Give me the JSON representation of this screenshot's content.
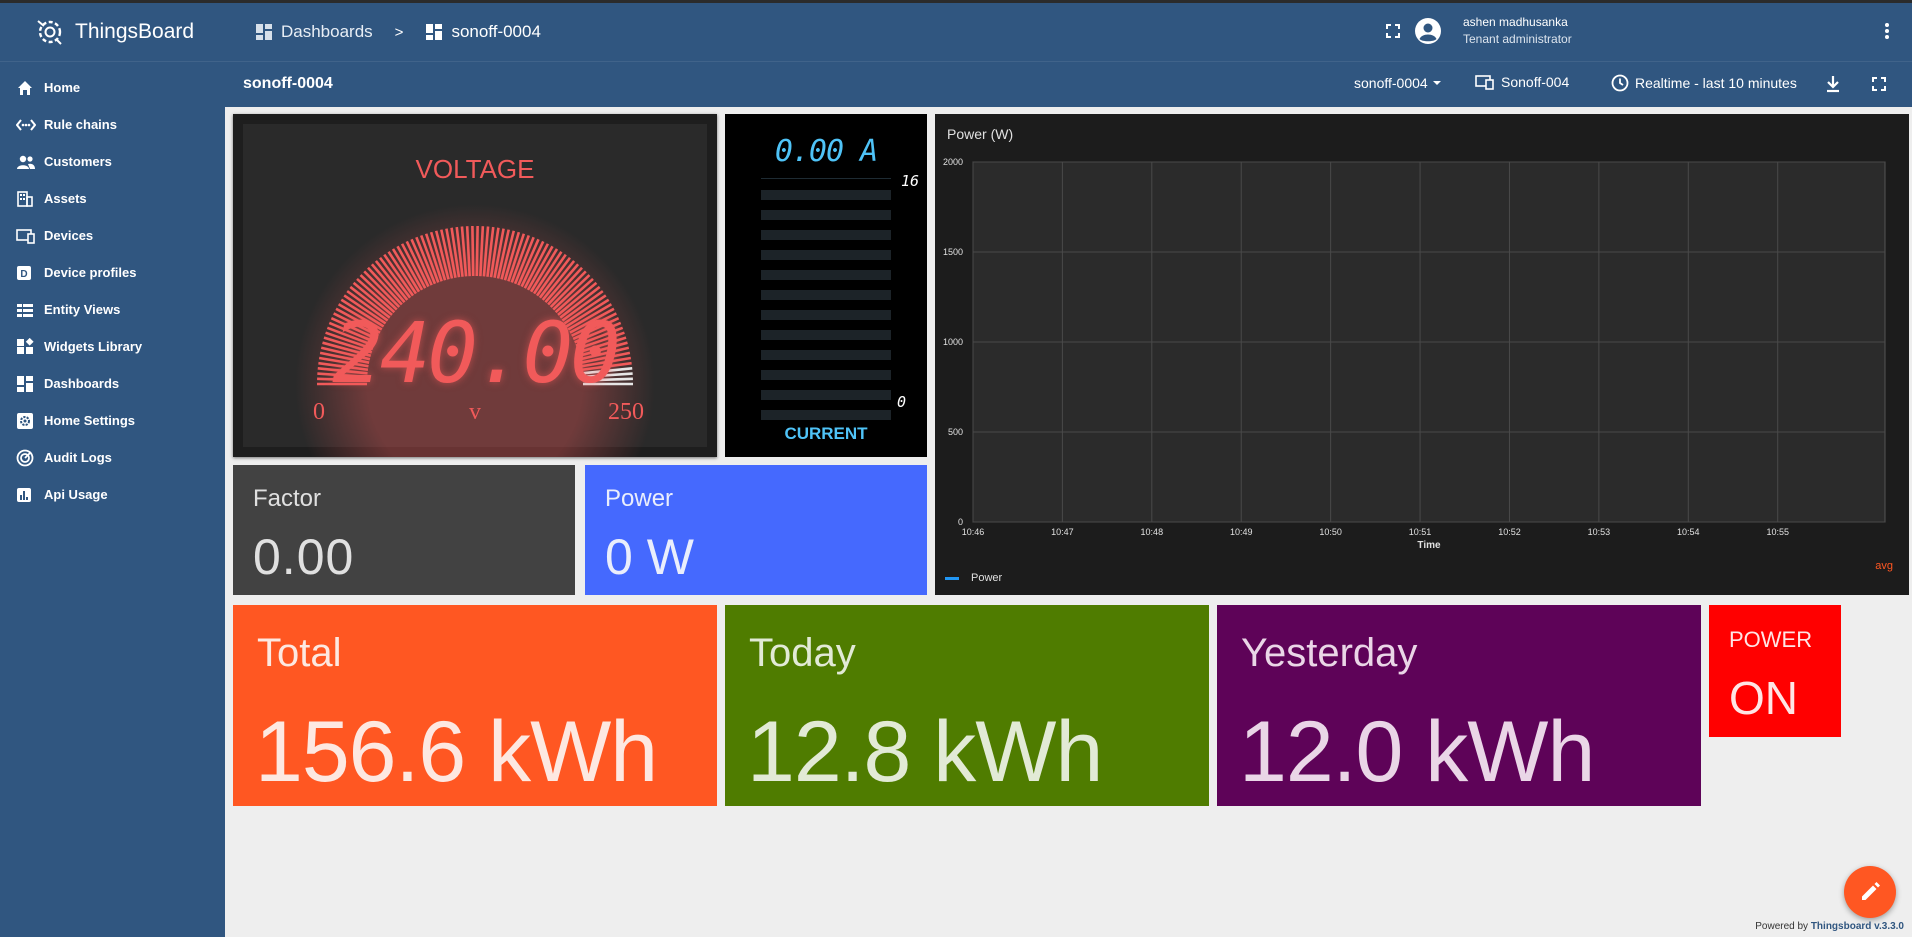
{
  "app": {
    "name": "ThingsBoard"
  },
  "sidebar": {
    "items": [
      {
        "label": "Home",
        "icon": "home-icon"
      },
      {
        "label": "Rule chains",
        "icon": "rule-chain-icon"
      },
      {
        "label": "Customers",
        "icon": "customers-icon"
      },
      {
        "label": "Assets",
        "icon": "assets-icon"
      },
      {
        "label": "Devices",
        "icon": "devices-icon"
      },
      {
        "label": "Device profiles",
        "icon": "device-profiles-icon"
      },
      {
        "label": "Entity Views",
        "icon": "entity-views-icon"
      },
      {
        "label": "Widgets Library",
        "icon": "widgets-library-icon"
      },
      {
        "label": "Dashboards",
        "icon": "dashboards-icon"
      },
      {
        "label": "Home Settings",
        "icon": "settings-icon"
      },
      {
        "label": "Audit Logs",
        "icon": "audit-logs-icon"
      },
      {
        "label": "Api Usage",
        "icon": "api-usage-icon"
      }
    ]
  },
  "header": {
    "breadcrumb": {
      "root": "Dashboards",
      "separator": ">",
      "current": "sonoff-0004"
    },
    "user": {
      "name": "ashen madhusanka",
      "role": "Tenant administrator"
    }
  },
  "dashbar": {
    "title": "sonoff-0004",
    "state_select": "sonoff-0004",
    "entity": "Sonoff-004",
    "timewindow": "Realtime - last 10 minutes"
  },
  "voltage": {
    "title": "VOLTAGE",
    "value": "240.00",
    "min": "0",
    "max": "250",
    "unit": "v",
    "level": 0.96
  },
  "current": {
    "value": "0.00 A",
    "max": "16",
    "min": "0",
    "label": "CURRENT",
    "level": 0
  },
  "factor_card": {
    "title": "Factor",
    "value": "0.00"
  },
  "power_card": {
    "title": "Power",
    "value": "0 W"
  },
  "chart_data": {
    "type": "line",
    "title": "Power (W)",
    "xlabel": "Time",
    "ylabel": "",
    "x_ticks": [
      "10:46",
      "10:47",
      "10:48",
      "10:49",
      "10:50",
      "10:51",
      "10:52",
      "10:53",
      "10:54",
      "10:55"
    ],
    "y_ticks": [
      "0",
      "500",
      "1000",
      "1500",
      "2000"
    ],
    "ylim": [
      0,
      2000
    ],
    "series": [
      {
        "name": "Power",
        "values": []
      }
    ],
    "legend_position": "bottom-left",
    "aggregation_label": "avg",
    "grid": true,
    "colors": {
      "series": "#2196f3",
      "background": "#1c1c1c"
    }
  },
  "total_card": {
    "title": "Total",
    "value": "156.6 kWh"
  },
  "today_card": {
    "title": "Today",
    "value": "12.8 kWh"
  },
  "yesterday_card": {
    "title": "Yesterday",
    "value": "12.0 kWh"
  },
  "status_card": {
    "title": "POWER",
    "value": "ON"
  },
  "footer": {
    "prefix": "Powered by",
    "link": "Thingsboard v.3.3.0"
  },
  "colors": {
    "primary": "#305680",
    "accent": "#ff5722",
    "total": "#ff5722",
    "today": "#4f7c00",
    "yesterday": "#5e0358",
    "power": "#4569fe",
    "factor": "#424242",
    "status": "#ff0000"
  }
}
